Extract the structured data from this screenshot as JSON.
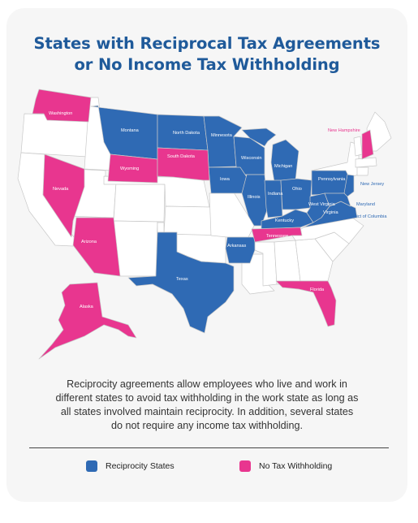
{
  "title": {
    "line1": "States with Reciprocal Tax Agreements",
    "line2": "or No Income Tax Withholding"
  },
  "colors": {
    "reciprocity": "#2f6ab4",
    "no_tax": "#e8368f",
    "other_states": "#ffffff",
    "title": "#1f5a9a"
  },
  "map": {
    "reciprocity_states": [
      "Montana",
      "North Dakota",
      "Minnesota",
      "Wisconsin",
      "Michigan",
      "Iowa",
      "Illinois",
      "Indiana",
      "Ohio",
      "Pennsylvania",
      "New Jersey",
      "Kentucky",
      "West Virginia",
      "Virginia",
      "Maryland",
      "District of Columbia",
      "Arkansas",
      "Texas"
    ],
    "no_tax_states": [
      "Washington",
      "Wyoming",
      "South Dakota",
      "Nevada",
      "Arizona",
      "Tennessee",
      "Florida",
      "Alaska",
      "New Hampshire"
    ],
    "labels": {
      "washington": "Washington",
      "montana": "Montana",
      "north_dakota": "North Dakota",
      "minnesota": "Minnesota",
      "wisconsin": "Wisconsin",
      "michigan": "Michigan",
      "wyoming": "Wyoming",
      "south_dakota": "South Dakota",
      "iowa": "Iowa",
      "illinois": "Illinois",
      "indiana": "Indiana",
      "ohio": "Ohio",
      "pennsylvania": "Pennsylvania",
      "new_jersey": "New Jersey",
      "new_hampshire": "New Hampshire",
      "nevada": "Nevada",
      "west_virginia": "West Virginia",
      "virginia": "Virginia",
      "maryland": "Maryland",
      "district_of_columbia": "District of Columbia",
      "kentucky": "Kentucky",
      "tennessee": "Tennessee",
      "arizona": "Arizona",
      "arkansas": "Arkansas",
      "texas": "Texas",
      "florida": "Florida",
      "alaska": "Alaska"
    }
  },
  "description": "Reciprocity agreements allow employees who live and work in different states to avoid tax withholding in the work state as long as all states involved maintain reciprocity. In addition, several states do not require any income tax withholding.",
  "legend": {
    "reciprocity_label": "Reciprocity States",
    "no_tax_label": "No Tax Withholding"
  }
}
